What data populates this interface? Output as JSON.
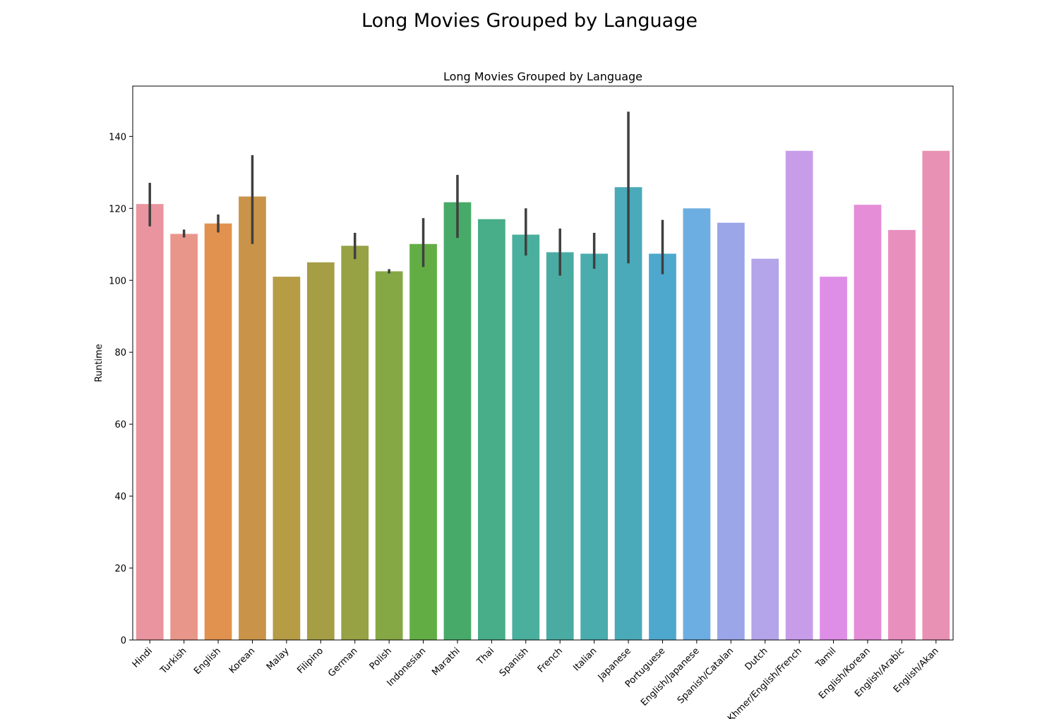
{
  "suptitle": "Long Movies Grouped by Language",
  "chart_data": {
    "type": "bar",
    "title": "Long Movies Grouped by Language",
    "xlabel": "",
    "ylabel": "Runtime",
    "ylim": [
      0,
      154
    ],
    "yticks": [
      0,
      20,
      40,
      60,
      80,
      100,
      120,
      140
    ],
    "grid": false,
    "categories": [
      "Hindi",
      "Turkish",
      "English",
      "Korean",
      "Malay",
      "Filipino",
      "German",
      "Polish",
      "Indonesian",
      "Marathi",
      "Thai",
      "Spanish",
      "French",
      "Italian",
      "Japanese",
      "Portuguese",
      "English/Japanese",
      "Spanish/Catalan",
      "Dutch",
      "Khmer/English/French",
      "Tamil",
      "English/Korean",
      "English/Arabic",
      "English/Akan"
    ],
    "values": [
      121.2,
      112.9,
      115.8,
      123.3,
      101,
      105,
      109.6,
      102.5,
      110.1,
      121.7,
      117,
      112.7,
      107.8,
      107.4,
      125.9,
      107.4,
      120,
      116,
      106,
      136,
      101,
      121,
      114,
      136
    ],
    "error_low": [
      115,
      111.9,
      113.3,
      110.1,
      null,
      null,
      105.9,
      101.9,
      103.7,
      111.8,
      null,
      106.9,
      101.3,
      103.2,
      104.7,
      101.7,
      null,
      null,
      null,
      null,
      null,
      null,
      null,
      null
    ],
    "error_high": [
      127.1,
      114.1,
      118.3,
      134.8,
      null,
      null,
      113.2,
      103.1,
      117.3,
      129.3,
      null,
      120,
      114.4,
      113.2,
      146.9,
      116.8,
      null,
      null,
      null,
      null,
      null,
      null,
      null,
      null
    ],
    "colors": [
      "#e9949e",
      "#e8968a",
      "#e1924f",
      "#c99449",
      "#b59c45",
      "#a59e45",
      "#96a244",
      "#86a844",
      "#62ae45",
      "#47aa68",
      "#48ad89",
      "#4aaf9c",
      "#4aaba2",
      "#4aacad",
      "#4baab9",
      "#4ea8cd",
      "#6caee1",
      "#9aa6e8",
      "#b4a4ea",
      "#c79dea",
      "#df8ee8",
      "#e58dd7",
      "#e98fbe",
      "#e991b4"
    ]
  }
}
